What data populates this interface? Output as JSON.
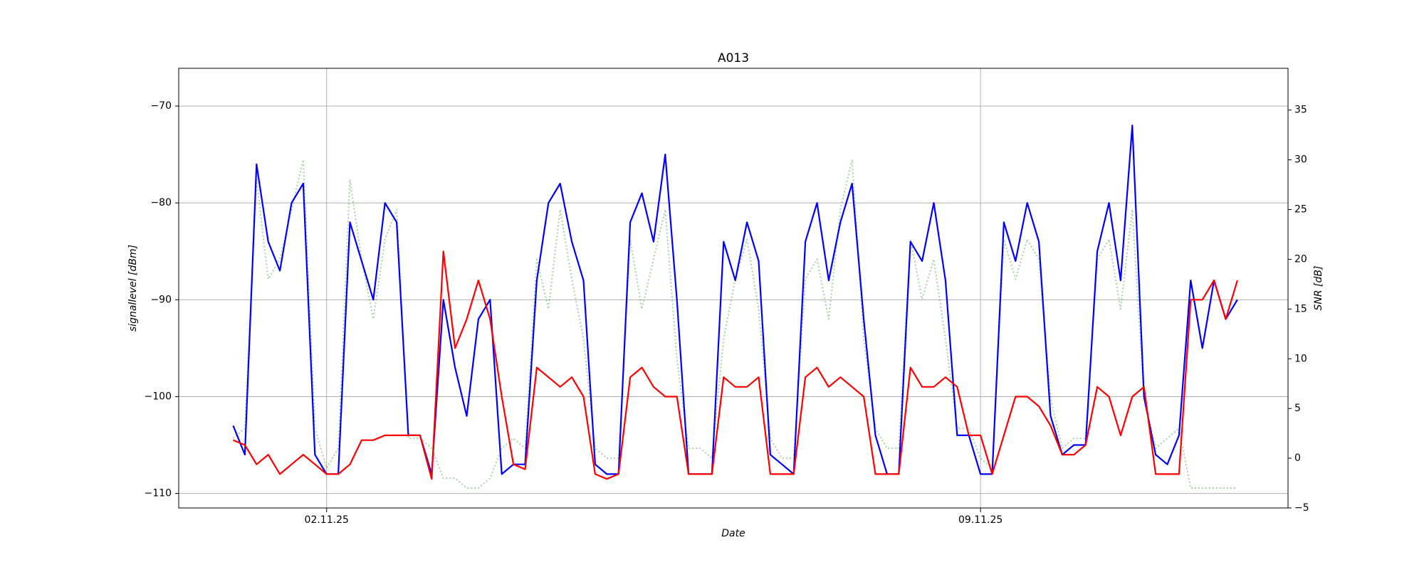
{
  "chart_data": {
    "type": "line",
    "title": "A013",
    "x_label": "Date",
    "y_label": "signallevel [dBm]",
    "y2_label": "SNR [dB]",
    "x": [
      "2025-11-01 00:00",
      "2025-11-01 03:00",
      "2025-11-01 06:00",
      "2025-11-01 09:00",
      "2025-11-01 12:00",
      "2025-11-01 15:00",
      "2025-11-01 18:00",
      "2025-11-01 21:00",
      "2025-11-02 00:00",
      "2025-11-02 03:00",
      "2025-11-02 06:00",
      "2025-11-02 09:00",
      "2025-11-02 12:00",
      "2025-11-02 15:00",
      "2025-11-02 18:00",
      "2025-11-02 21:00",
      "2025-11-03 00:00",
      "2025-11-03 03:00",
      "2025-11-03 06:00",
      "2025-11-03 09:00",
      "2025-11-03 12:00",
      "2025-11-03 15:00",
      "2025-11-03 18:00",
      "2025-11-03 21:00",
      "2025-11-04 00:00",
      "2025-11-04 03:00",
      "2025-11-04 06:00",
      "2025-11-04 09:00",
      "2025-11-04 12:00",
      "2025-11-04 15:00",
      "2025-11-04 18:00",
      "2025-11-04 21:00",
      "2025-11-05 00:00",
      "2025-11-05 03:00",
      "2025-11-05 06:00",
      "2025-11-05 09:00",
      "2025-11-05 12:00",
      "2025-11-05 15:00",
      "2025-11-05 18:00",
      "2025-11-05 21:00",
      "2025-11-06 00:00",
      "2025-11-06 03:00",
      "2025-11-06 06:00",
      "2025-11-06 09:00",
      "2025-11-06 12:00",
      "2025-11-06 15:00",
      "2025-11-06 18:00",
      "2025-11-06 21:00",
      "2025-11-07 00:00",
      "2025-11-07 03:00",
      "2025-11-07 06:00",
      "2025-11-07 09:00",
      "2025-11-07 12:00",
      "2025-11-07 15:00",
      "2025-11-07 18:00",
      "2025-11-07 21:00",
      "2025-11-08 00:00",
      "2025-11-08 03:00",
      "2025-11-08 06:00",
      "2025-11-08 09:00",
      "2025-11-08 12:00",
      "2025-11-08 15:00",
      "2025-11-08 18:00",
      "2025-11-08 21:00",
      "2025-11-09 00:00",
      "2025-11-09 03:00",
      "2025-11-09 06:00",
      "2025-11-09 09:00",
      "2025-11-09 12:00",
      "2025-11-09 15:00",
      "2025-11-09 18:00",
      "2025-11-09 21:00",
      "2025-11-10 00:00",
      "2025-11-10 03:00",
      "2025-11-10 06:00",
      "2025-11-10 09:00",
      "2025-11-10 12:00",
      "2025-11-10 15:00",
      "2025-11-10 18:00",
      "2025-11-10 21:00",
      "2025-11-11 00:00",
      "2025-11-11 03:00",
      "2025-11-11 06:00",
      "2025-11-11 09:00",
      "2025-11-11 12:00",
      "2025-11-11 15:00",
      "2025-11-11 18:00"
    ],
    "series": [
      {
        "color": "green",
        "axis": "y2",
        "dashed": true,
        "values": [
          2,
          3,
          28,
          18,
          20,
          25,
          30,
          3,
          -1,
          1,
          28,
          20,
          14,
          22,
          25,
          2,
          2,
          1,
          -2,
          -2,
          -3,
          -3,
          -2,
          1,
          2,
          1,
          20,
          15,
          25,
          18,
          12,
          1,
          0,
          0,
          22,
          15,
          20,
          25,
          10,
          1,
          1,
          0,
          12,
          18,
          22,
          15,
          2,
          0,
          0,
          18,
          20,
          14,
          25,
          30,
          12,
          3,
          1,
          1,
          22,
          16,
          20,
          12,
          3,
          3,
          0,
          -1,
          22,
          18,
          22,
          20,
          6,
          1,
          2,
          2,
          20,
          22,
          15,
          25,
          6,
          1,
          2,
          3,
          -3,
          -3,
          -3,
          -3,
          -3
        ]
      },
      {
        "color": "blue",
        "values": [
          -103,
          -106,
          -76,
          -84,
          -87,
          -80,
          -78,
          -106,
          -108,
          -108,
          -82,
          -86,
          -90,
          -80,
          -82,
          -104,
          -104,
          -108,
          -90,
          -97,
          -102,
          -92,
          -90,
          -108,
          -107,
          -107,
          -88,
          -80,
          -78,
          -84,
          -88,
          -107,
          -108,
          -108,
          -82,
          -79,
          -84,
          -75,
          -90,
          -108,
          -108,
          -108,
          -84,
          -88,
          -82,
          -86,
          -106,
          -107,
          -108,
          -84,
          -80,
          -88,
          -82,
          -78,
          -92,
          -104,
          -108,
          -108,
          -84,
          -86,
          -80,
          -88,
          -104,
          -104,
          -108,
          -108,
          -82,
          -86,
          -80,
          -84,
          -102,
          -106,
          -105,
          -105,
          -85,
          -80,
          -88,
          -72,
          -100,
          -106,
          -107,
          -104,
          -88,
          -95,
          -88,
          -92,
          -90
        ]
      },
      {
        "color": "red",
        "values": [
          -104.5,
          -105,
          -107,
          -106,
          -108,
          -107,
          -106,
          -107,
          -108,
          -108,
          -107,
          -104.5,
          -104.5,
          -104,
          -104,
          -104,
          -104,
          -108.5,
          -85,
          -95,
          -92,
          -88,
          -92,
          -100,
          -107,
          -107.5,
          -97,
          -98,
          -99,
          -98,
          -100,
          -108,
          -108.5,
          -108,
          -98,
          -97,
          -99,
          -100,
          -100,
          -108,
          -108,
          -108,
          -98,
          -99,
          -99,
          -98,
          -108,
          -108,
          -108,
          -98,
          -97,
          -99,
          -98,
          -99,
          -100,
          -108,
          -108,
          -108,
          -97,
          -99,
          -99,
          -98,
          -99,
          -104,
          -104,
          -108,
          -104,
          -100,
          -100,
          -101,
          -103,
          -106,
          -106,
          -105,
          -99,
          -100,
          -104,
          -100,
          -99,
          -108,
          -108,
          -108,
          -90,
          -90,
          -88,
          -92,
          -88
        ]
      }
    ],
    "xlim": [
      "2025-10-31 10:00",
      "2025-11-12 07:00"
    ],
    "xticks": [
      {
        "value": "2025-11-02 00:00",
        "label": "02.11.25"
      },
      {
        "value": "2025-11-09 00:00",
        "label": "09.11.25"
      }
    ],
    "ylim": [
      -111.5,
      -66.1
    ],
    "yticks": [
      {
        "value": -110,
        "label": "−110"
      },
      {
        "value": -100,
        "label": "−100"
      },
      {
        "value": -90,
        "label": "−90"
      },
      {
        "value": -80,
        "label": "−80"
      },
      {
        "value": -70,
        "label": "−70"
      }
    ],
    "y2lim": [
      -5,
      39.2
    ],
    "y2ticks": [
      {
        "value": -5,
        "label": "−5"
      },
      0,
      5,
      10,
      15,
      20,
      25,
      30,
      35
    ],
    "grid": true
  }
}
